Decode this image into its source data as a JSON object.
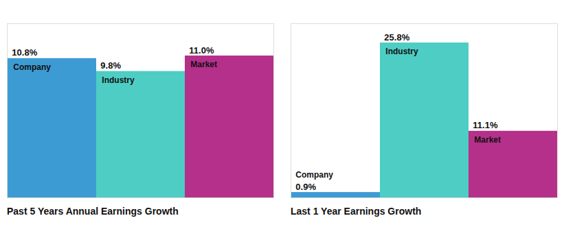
{
  "chart_data": [
    {
      "type": "bar",
      "title": "Past 5 Years Annual Earnings Growth",
      "categories": [
        "Company",
        "Industry",
        "Market"
      ],
      "values": [
        10.8,
        9.8,
        11.0
      ],
      "value_labels": [
        "10.8%",
        "9.8%",
        "11.0%"
      ],
      "colors": [
        "#3d9bd4",
        "#4ecdc4",
        "#b5308a"
      ],
      "ylim": [
        0,
        13.5
      ],
      "data_labels": true,
      "tick_labels": false,
      "grid": false
    },
    {
      "type": "bar",
      "title": "Last 1 Year Earnings Growth",
      "categories": [
        "Company",
        "Industry",
        "Market"
      ],
      "values": [
        0.9,
        25.8,
        11.1
      ],
      "value_labels": [
        "0.9%",
        "25.8%",
        "11.1%"
      ],
      "colors": [
        "#3d9bd4",
        "#4ecdc4",
        "#b5308a"
      ],
      "ylim": [
        0,
        29
      ],
      "data_labels": true,
      "tick_labels": false,
      "grid": false
    }
  ]
}
